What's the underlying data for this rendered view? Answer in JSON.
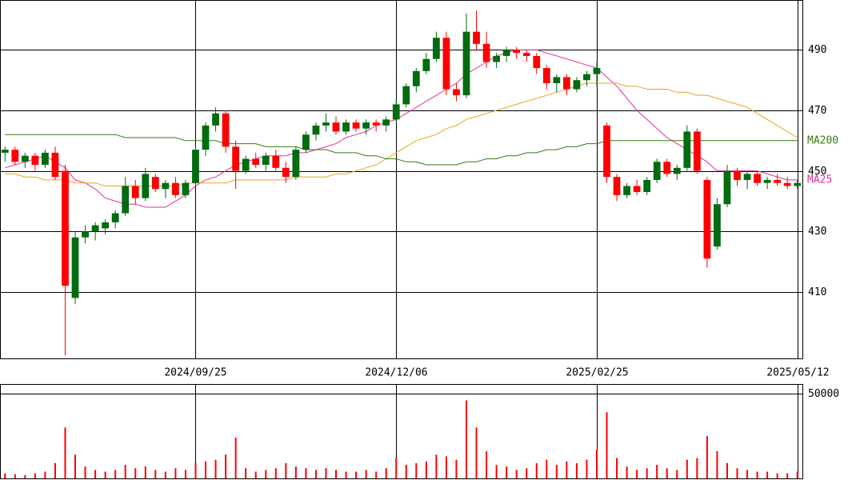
{
  "chart_data": {
    "type": "candlestick",
    "categories": [
      null,
      null,
      null,
      null,
      null,
      null,
      null,
      null,
      null,
      null,
      null,
      null,
      null,
      null,
      null,
      null,
      null,
      null,
      null,
      "2024/09/25",
      null,
      null,
      null,
      null,
      null,
      null,
      null,
      null,
      null,
      null,
      null,
      null,
      null,
      null,
      null,
      null,
      null,
      null,
      null,
      "2024/12/06",
      null,
      null,
      null,
      null,
      null,
      null,
      null,
      null,
      null,
      null,
      null,
      null,
      null,
      null,
      null,
      null,
      null,
      null,
      null,
      "2025/02/25",
      null,
      null,
      null,
      null,
      null,
      null,
      null,
      null,
      null,
      null,
      null,
      null,
      null,
      null,
      null,
      null,
      null,
      null,
      null,
      "2025/05/12"
    ],
    "open": [
      456,
      457,
      453,
      455,
      452,
      456,
      450,
      408,
      428,
      430,
      431,
      433,
      436,
      445,
      441,
      448,
      444,
      446,
      442,
      446,
      457,
      465,
      469,
      458,
      450,
      454,
      452,
      455,
      451,
      448,
      457,
      462,
      465,
      466,
      463,
      466,
      464,
      466,
      465,
      467,
      472,
      478,
      483,
      487,
      494,
      477,
      475,
      496,
      492,
      486,
      488,
      490,
      489,
      488,
      484,
      479,
      481,
      477,
      480,
      482,
      465,
      448,
      442,
      445,
      443,
      447,
      453,
      449,
      451,
      463,
      447,
      425,
      439,
      450,
      447,
      449,
      446,
      447,
      446,
      445
    ],
    "high": [
      458,
      458,
      456,
      456,
      457,
      458,
      452,
      430,
      432,
      433,
      434,
      437,
      448,
      447,
      451,
      449,
      447,
      448,
      447,
      458,
      466,
      471,
      470,
      460,
      455,
      456,
      456,
      457,
      453,
      458,
      463,
      466,
      469,
      468,
      467,
      467,
      467,
      467,
      468,
      474,
      479,
      484,
      489,
      496,
      496,
      479,
      502,
      503,
      496,
      489,
      491,
      491,
      490,
      489,
      485,
      482,
      482,
      481,
      483,
      486,
      466,
      449,
      446,
      447,
      448,
      454,
      454,
      452,
      465,
      464,
      448,
      441,
      452,
      451,
      450,
      450,
      448,
      449,
      448,
      447
    ],
    "low": [
      453,
      452,
      451,
      450,
      451,
      447,
      389,
      406,
      426,
      427,
      429,
      431,
      435,
      439,
      440,
      443,
      441,
      441,
      441,
      445,
      455,
      463,
      456,
      444,
      449,
      451,
      450,
      450,
      446,
      447,
      456,
      460,
      463,
      462,
      462,
      463,
      462,
      463,
      463,
      466,
      471,
      476,
      482,
      486,
      475,
      473,
      474,
      490,
      484,
      484,
      486,
      487,
      486,
      482,
      477,
      476,
      475,
      476,
      478,
      478,
      446,
      440,
      441,
      442,
      442,
      446,
      448,
      447,
      450,
      449,
      418,
      424,
      438,
      445,
      444,
      445,
      444,
      445,
      444,
      444
    ],
    "close": [
      457,
      453,
      455,
      452,
      456,
      448,
      412,
      428,
      430,
      432,
      433,
      436,
      445,
      441,
      449,
      444,
      446,
      442,
      446,
      457,
      465,
      469,
      458,
      450,
      454,
      452,
      455,
      451,
      448,
      457,
      462,
      465,
      466,
      463,
      466,
      464,
      466,
      465,
      467,
      472,
      478,
      483,
      487,
      494,
      477,
      475,
      496,
      492,
      486,
      488,
      490,
      489,
      488,
      484,
      479,
      481,
      477,
      480,
      482,
      484,
      448,
      442,
      445,
      443,
      447,
      453,
      449,
      451,
      463,
      450,
      421,
      439,
      450,
      447,
      449,
      446,
      447,
      446,
      445,
      446
    ],
    "up_color": "#006b0f",
    "down_color": "#ff0000",
    "ylim": [
      388,
      506.5
    ],
    "yticks": [
      410,
      430,
      450,
      470,
      490
    ],
    "grid": true,
    "series": [
      {
        "name": "MA25",
        "color": "#e0309f",
        "values": [
          451,
          452,
          453,
          454,
          455,
          453,
          451,
          447,
          446,
          444,
          441,
          440,
          439,
          439,
          438,
          438,
          438,
          440,
          442,
          445,
          447,
          448,
          450,
          452,
          453,
          454,
          455,
          455,
          455,
          456,
          456,
          457,
          458,
          459,
          461,
          462,
          463,
          465,
          466,
          467,
          469,
          471,
          473,
          475,
          477,
          479,
          482,
          484,
          486,
          488,
          489,
          490,
          490,
          490,
          489,
          488,
          487,
          486,
          485,
          484,
          481,
          478,
          474,
          470,
          467,
          464,
          461,
          459,
          457,
          455,
          453,
          450,
          450,
          450,
          450,
          450,
          449,
          448,
          447,
          447
        ]
      },
      {
        "color": "#f0a020",
        "values": [
          449,
          449,
          448,
          448,
          447,
          447,
          447,
          446,
          446,
          446,
          445,
          445,
          445,
          445,
          445,
          445,
          445,
          445,
          446,
          446,
          446,
          446,
          446,
          447,
          447,
          447,
          447,
          447,
          447,
          448,
          448,
          448,
          448,
          449,
          449,
          450,
          451,
          452,
          454,
          456,
          458,
          460,
          461,
          462,
          464,
          465,
          467,
          468,
          469,
          470,
          471,
          472,
          473,
          474,
          475,
          476,
          477,
          478,
          479,
          479,
          479,
          479,
          478,
          478,
          477,
          477,
          477,
          476,
          476,
          475,
          475,
          474,
          473,
          472,
          471,
          469,
          467,
          465,
          463,
          461
        ]
      },
      {
        "name": "MA200",
        "color": "#3a7a10",
        "values": [
          462,
          462,
          462,
          462,
          462,
          462,
          462,
          462,
          462,
          462,
          462,
          462,
          461,
          461,
          461,
          461,
          461,
          461,
          460,
          460,
          460,
          460,
          459,
          459,
          459,
          459,
          458,
          458,
          458,
          458,
          457,
          457,
          457,
          456,
          456,
          456,
          455,
          455,
          454,
          454,
          453,
          453,
          452,
          452,
          452,
          452,
          453,
          453,
          454,
          454,
          455,
          455,
          456,
          456,
          457,
          457,
          458,
          458,
          459,
          459,
          460,
          460,
          460,
          460,
          460,
          460,
          460,
          460,
          460,
          460,
          460,
          460,
          460,
          460,
          460,
          460,
          460,
          460,
          460,
          460
        ]
      }
    ],
    "volume": {
      "color": "#ff0000",
      "ylim": [
        0,
        55700
      ],
      "yticks": [
        50000
      ],
      "values": [
        3000,
        2500,
        2000,
        3000,
        4000,
        9000,
        30000,
        14000,
        7000,
        5000,
        4000,
        5000,
        8000,
        6000,
        7000,
        5000,
        4000,
        6000,
        5000,
        9000,
        10000,
        11000,
        14000,
        24000,
        6000,
        4000,
        5000,
        6000,
        9000,
        7000,
        6000,
        5000,
        6000,
        5000,
        4000,
        4000,
        5000,
        4000,
        6000,
        12000,
        8000,
        9000,
        10000,
        14000,
        13000,
        11000,
        46000,
        30000,
        16000,
        8000,
        7000,
        5000,
        6000,
        9000,
        11000,
        8000,
        10000,
        9000,
        11000,
        17000,
        39000,
        12000,
        7000,
        5000,
        6000,
        8000,
        6000,
        5000,
        11000,
        12000,
        25000,
        16000,
        9000,
        6000,
        5000,
        4000,
        4000,
        3000,
        3000,
        4000
      ]
    }
  }
}
